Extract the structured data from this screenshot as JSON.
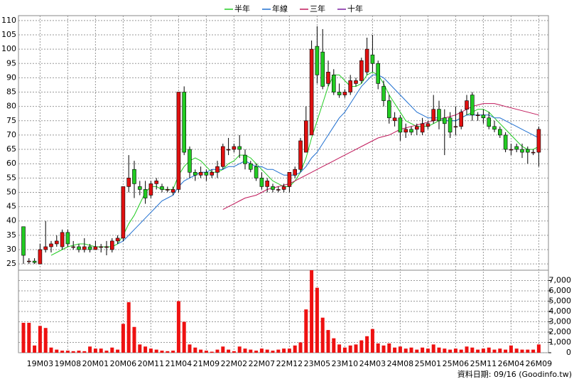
{
  "chart_data": {
    "type": "candlestick",
    "source": "資料日期: 09/16  (Goodinfo.tw)",
    "categories": [
      null,
      null,
      null,
      "19M03",
      null,
      null,
      null,
      null,
      "19M08",
      null,
      null,
      null,
      null,
      "20M01",
      null,
      null,
      null,
      null,
      "20M06",
      null,
      null,
      null,
      null,
      "20M11",
      null,
      null,
      null,
      null,
      "21M04",
      null,
      null,
      null,
      null,
      "21M09",
      null,
      null,
      null,
      null,
      "22M02",
      null,
      null,
      null,
      null,
      "22M07",
      null,
      null,
      null,
      null,
      "22M12",
      null,
      null,
      null,
      null,
      "23M05",
      null,
      null,
      null,
      null,
      "23M10",
      null,
      null,
      null,
      null,
      "24M03",
      null,
      null,
      null,
      null,
      "24M08",
      null,
      null,
      null,
      null,
      "25M01",
      null,
      null,
      null,
      null,
      "25M06",
      null,
      null,
      null,
      null,
      "25M11",
      null,
      null,
      null,
      null,
      "26M04",
      null,
      null,
      null,
      null,
      "26M09"
    ],
    "open": [
      38,
      26,
      26,
      25,
      30,
      31,
      32,
      31,
      36,
      31,
      31,
      30,
      31,
      30,
      31,
      31,
      30,
      33,
      34,
      52,
      58,
      52,
      51,
      49,
      53,
      52,
      51,
      50,
      51,
      85,
      65,
      57,
      56,
      57,
      56,
      57,
      59,
      65,
      65,
      66,
      63,
      60,
      59,
      55,
      52,
      52,
      51,
      51,
      52,
      56,
      58,
      64,
      70,
      101,
      99,
      88,
      91,
      85,
      84,
      85,
      88,
      89,
      92,
      98,
      95,
      87,
      82,
      75,
      76,
      71,
      72,
      72,
      71,
      73,
      75,
      79,
      76,
      76,
      73,
      73,
      79,
      84,
      77,
      77,
      76,
      73,
      72,
      70,
      65,
      66,
      65,
      65,
      64,
      64
    ],
    "high": [
      38,
      27,
      27,
      32,
      40,
      33,
      35,
      37,
      37,
      33,
      32,
      34,
      32,
      33,
      32,
      33,
      34,
      35,
      52,
      63,
      61,
      54,
      54,
      54,
      55,
      53,
      52,
      52,
      85,
      87,
      66,
      58,
      59,
      58,
      58,
      61,
      67,
      69,
      67,
      70,
      65,
      61,
      60,
      57,
      55,
      53,
      52,
      53,
      57,
      59,
      69,
      80,
      103,
      108,
      107,
      96,
      93,
      88,
      86,
      91,
      90,
      97,
      104,
      105,
      96,
      89,
      84,
      78,
      77,
      74,
      73,
      74,
      76,
      75,
      84,
      82,
      79,
      78,
      80,
      79,
      84,
      85,
      78,
      79,
      78,
      75,
      73,
      71,
      67,
      67,
      67,
      66,
      65,
      73
    ],
    "low": [
      25,
      25,
      25,
      25,
      29,
      29,
      31,
      30,
      31,
      30,
      29,
      29,
      29,
      30,
      29,
      28,
      29,
      32,
      33,
      50,
      48,
      49,
      46,
      48,
      51,
      50,
      50,
      49,
      50,
      63,
      55,
      54,
      55,
      54,
      55,
      55,
      58,
      63,
      64,
      62,
      58,
      57,
      54,
      51,
      50,
      50,
      50,
      50,
      50,
      55,
      57,
      64,
      70,
      88,
      86,
      87,
      84,
      83,
      83,
      84,
      87,
      88,
      91,
      92,
      86,
      80,
      74,
      73,
      68,
      69,
      70,
      70,
      70,
      72,
      74,
      72,
      63,
      69,
      70,
      72,
      77,
      75,
      75,
      74,
      72,
      71,
      69,
      64,
      63,
      64,
      62,
      60,
      63,
      59
    ],
    "close": [
      28,
      26,
      25.5,
      30,
      31,
      32,
      33,
      36,
      32,
      31,
      30,
      31,
      30,
      31,
      31,
      31,
      33,
      34,
      52,
      55,
      53,
      51,
      48,
      53,
      54,
      51,
      51,
      51,
      85,
      64,
      57,
      56,
      57,
      56,
      57,
      59,
      66,
      65,
      66,
      65,
      60,
      58,
      55,
      52,
      54,
      51,
      51,
      52,
      57,
      58,
      68,
      75,
      100,
      91,
      87,
      92,
      85,
      84,
      85,
      89,
      89,
      96,
      100,
      95,
      88,
      82,
      76,
      76,
      71,
      72,
      71,
      73,
      74,
      74,
      79,
      75,
      74,
      71,
      73,
      78,
      82,
      77,
      77,
      76,
      73,
      72,
      70,
      65,
      65,
      65,
      64,
      64,
      64,
      72
    ],
    "up_color": "#e01010",
    "down_color": "#22cc22",
    "ylim": [
      22.8,
      111.7
    ],
    "yticks": [
      25,
      30,
      35,
      40,
      45,
      50,
      55,
      60,
      65,
      70,
      75,
      80,
      85,
      90,
      95,
      100,
      105,
      110
    ],
    "grid": true,
    "series": [
      {
        "name": "半年",
        "color": "#22cc22",
        "values": [
          null,
          null,
          null,
          null,
          null,
          28,
          29,
          30,
          31,
          31.5,
          32,
          32,
          31.5,
          31,
          31,
          31,
          31,
          32,
          35,
          39,
          42,
          46,
          50,
          52,
          52,
          51,
          51,
          51,
          56,
          59,
          61,
          62,
          61,
          59,
          57,
          57,
          58,
          60,
          61,
          63,
          63,
          62,
          60,
          58,
          56,
          54,
          53,
          52,
          52,
          54,
          57,
          62,
          69,
          75,
          81,
          87,
          91,
          91,
          89,
          87,
          87,
          88,
          91,
          92,
          91,
          88,
          84,
          81,
          78,
          75,
          74,
          73,
          73,
          73,
          74,
          75,
          75,
          75,
          75,
          76,
          77,
          78,
          79,
          79,
          78,
          76,
          74,
          72,
          70,
          68,
          66,
          65,
          65,
          66
        ]
      },
      {
        "name": "年線",
        "color": "#1f6fd0",
        "values": [
          null,
          null,
          null,
          null,
          null,
          null,
          null,
          null,
          null,
          null,
          null,
          null,
          null,
          null,
          null,
          null,
          null,
          32,
          33,
          35,
          37,
          39,
          41,
          43,
          45,
          47,
          48,
          49,
          52,
          54,
          55,
          56,
          57,
          57,
          58,
          58,
          58,
          59,
          59,
          60,
          61,
          60,
          59,
          59,
          58,
          58,
          57,
          56,
          56,
          56,
          57,
          59,
          62,
          64,
          67,
          70,
          73,
          76,
          78,
          81,
          84,
          87,
          89,
          91,
          91,
          90,
          88,
          86,
          84,
          82,
          80,
          78,
          77,
          76,
          76,
          76,
          75,
          75,
          75,
          76,
          77,
          77,
          77,
          77,
          77,
          76,
          76,
          75,
          74,
          73,
          72,
          71,
          70,
          69
        ]
      },
      {
        "name": "三年",
        "color": "#c0185a",
        "values": [
          null,
          null,
          null,
          null,
          null,
          null,
          null,
          null,
          null,
          null,
          null,
          null,
          null,
          null,
          null,
          null,
          null,
          null,
          null,
          null,
          null,
          null,
          null,
          null,
          null,
          null,
          null,
          null,
          null,
          null,
          null,
          null,
          null,
          null,
          null,
          null,
          44,
          45,
          46,
          47,
          48,
          48.5,
          49,
          50,
          51,
          51.5,
          52,
          52.5,
          53,
          54,
          55,
          56,
          57,
          58,
          59,
          60,
          61,
          62,
          63,
          64,
          65,
          66,
          67,
          68,
          69,
          69.5,
          70,
          71,
          72,
          72.5,
          73,
          73.5,
          74,
          74.5,
          75,
          75.5,
          76,
          76.5,
          77,
          78,
          79,
          80,
          80.5,
          81,
          81,
          81,
          80.5,
          80,
          79.5,
          79,
          78.5,
          78,
          77.5,
          77
        ]
      },
      {
        "name": "十年",
        "color": "#7a1fa0",
        "values": [
          null,
          null,
          null,
          null,
          null,
          null,
          null,
          null,
          null,
          null,
          null,
          null,
          null,
          null,
          null,
          null,
          null,
          null,
          null,
          null,
          null,
          null,
          null,
          null,
          null,
          null,
          null,
          null,
          null,
          null,
          null,
          null,
          null,
          null,
          null,
          null,
          null,
          null,
          null,
          null,
          null,
          null,
          null,
          null,
          null,
          null,
          null,
          null,
          null,
          null,
          null,
          null,
          null,
          null,
          null,
          null,
          null,
          null,
          null,
          null,
          null,
          null,
          null,
          null,
          null,
          null,
          null,
          null,
          null,
          null,
          null,
          null,
          null,
          null,
          null,
          null,
          null,
          null,
          null,
          null,
          null,
          null,
          null,
          null,
          null,
          null,
          null,
          null,
          null,
          null,
          null,
          null,
          null,
          null
        ]
      }
    ],
    "volume": {
      "color": "#ee1111",
      "ylim": [
        0,
        8000
      ],
      "yticks": [
        0,
        {
          "value": 1000,
          "label": "1,000"
        },
        {
          "value": 2000,
          "label": "2,000"
        },
        {
          "value": 3000,
          "label": "3,000"
        },
        {
          "value": 4000,
          "label": "4,000"
        },
        {
          "value": 5000,
          "label": "5,000"
        },
        {
          "value": 6000,
          "label": "6,000"
        },
        {
          "value": 7000,
          "label": "7,000"
        }
      ],
      "values": [
        2900,
        2900,
        700,
        2600,
        2400,
        500,
        300,
        200,
        200,
        150,
        200,
        150,
        600,
        400,
        400,
        200,
        500,
        300,
        2800,
        4900,
        2500,
        800,
        600,
        400,
        300,
        200,
        150,
        200,
        5000,
        3000,
        800,
        500,
        300,
        200,
        100,
        300,
        600,
        300,
        150,
        600,
        400,
        300,
        200,
        400,
        300,
        200,
        300,
        400,
        400,
        700,
        1000,
        4200,
        8000,
        6300,
        3400,
        2200,
        1400,
        800,
        500,
        700,
        800,
        1200,
        1600,
        2300,
        900,
        700,
        900,
        500,
        600,
        400,
        500,
        300,
        500,
        400,
        800,
        500,
        400,
        300,
        400,
        300,
        600,
        500,
        300,
        400,
        500,
        300,
        400,
        300,
        700,
        400,
        300,
        300,
        300,
        800
      ]
    }
  }
}
